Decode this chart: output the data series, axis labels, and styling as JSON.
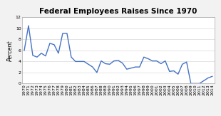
{
  "title": "Federal Employees Raises Since 1970",
  "ylabel": "Percent",
  "years": [
    1970,
    1971,
    1972,
    1973,
    1974,
    1975,
    1976,
    1977,
    1978,
    1979,
    1980,
    1981,
    1982,
    1983,
    1984,
    1985,
    1986,
    1987,
    1988,
    1989,
    1990,
    1991,
    1992,
    1993,
    1994,
    1995,
    1996,
    1997,
    1998,
    1999,
    2000,
    2001,
    2002,
    2003,
    2004,
    2005,
    2006,
    2007,
    2008,
    2009,
    2010,
    2011,
    2012,
    2013,
    2014
  ],
  "values": [
    6.0,
    10.5,
    5.1,
    4.8,
    5.5,
    5.0,
    7.3,
    7.05,
    5.5,
    9.1,
    9.1,
    4.8,
    4.0,
    4.0,
    4.0,
    3.5,
    3.0,
    2.0,
    4.1,
    3.6,
    3.5,
    4.1,
    4.2,
    3.7,
    2.6,
    2.8,
    3.0,
    3.0,
    4.8,
    4.5,
    4.1,
    4.1,
    3.6,
    4.1,
    2.2,
    2.3,
    1.7,
    3.5,
    3.9,
    0.0,
    0.0,
    0.0,
    0.5,
    1.0,
    1.3
  ],
  "line_color": "#4472C4",
  "background_color": "#f2f2f2",
  "plot_bg_color": "#ffffff",
  "ylim": [
    0,
    12
  ],
  "yticks": [
    0,
    2,
    4,
    6,
    8,
    10,
    12
  ],
  "title_fontsize": 7.5,
  "ylabel_fontsize": 5.5,
  "tick_fontsize": 4.5,
  "grid_color": "#d9d9d9",
  "line_width": 1.0
}
